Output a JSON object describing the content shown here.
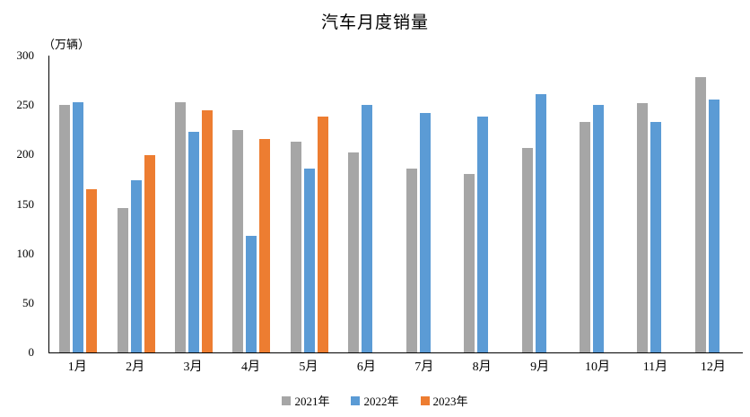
{
  "chart_data": {
    "type": "bar",
    "title": "汽车月度销量",
    "unit_label": "（万辆）",
    "categories": [
      "1月",
      "2月",
      "3月",
      "4月",
      "5月",
      "6月",
      "7月",
      "8月",
      "9月",
      "10月",
      "11月",
      "12月"
    ],
    "series": [
      {
        "name": "2021年",
        "color": "#A6A6A6",
        "values": [
          250,
          146,
          253,
          225,
          213,
          202,
          186,
          180,
          207,
          233,
          252,
          278
        ]
      },
      {
        "name": "2022年",
        "color": "#5B9BD5",
        "values": [
          253,
          174,
          223,
          118,
          186,
          250,
          242,
          238,
          261,
          250,
          233,
          256
        ]
      },
      {
        "name": "2023年",
        "color": "#ED7D31",
        "values": [
          165,
          199,
          245,
          216,
          238,
          null,
          null,
          null,
          null,
          null,
          null,
          null
        ]
      }
    ],
    "ylim": [
      0,
      300
    ],
    "ytick_step": 50,
    "y_tick_labels": [
      "0",
      "50",
      "100",
      "150",
      "200",
      "250",
      "300"
    ],
    "xlabel": "",
    "ylabel": "（万辆）",
    "grid": false,
    "legend_position": "bottom",
    "axis_color": "#000000",
    "background": "#FFFFFF"
  }
}
